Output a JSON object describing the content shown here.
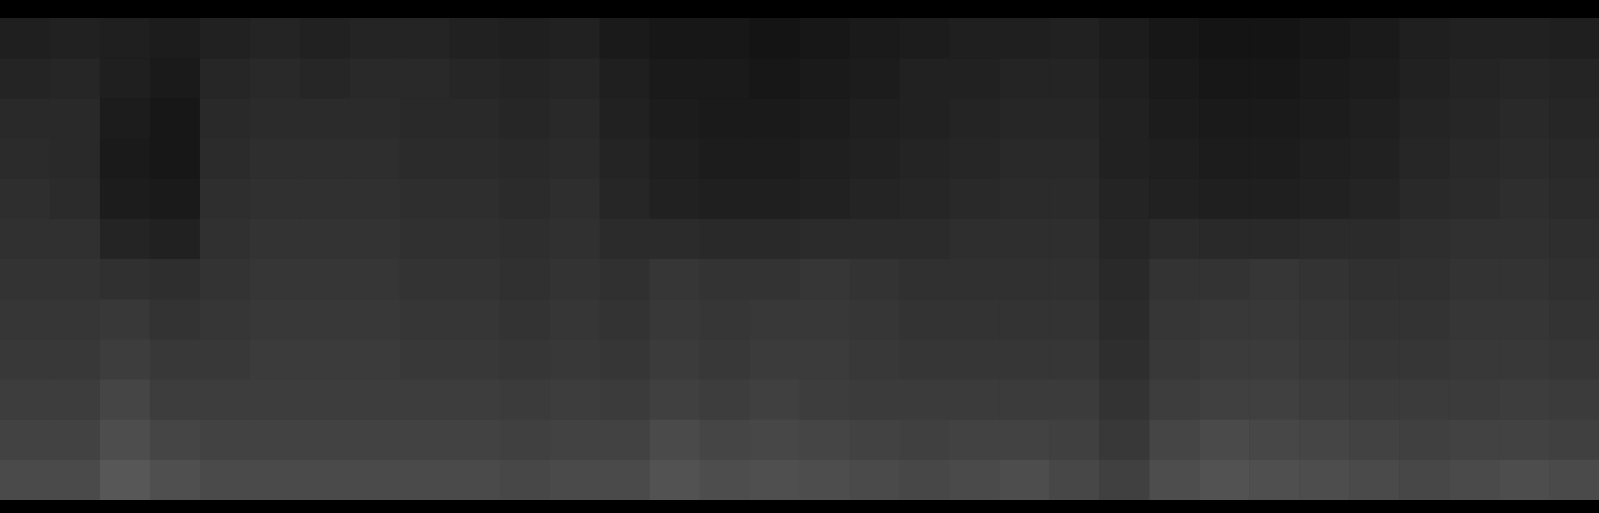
{
  "chart_data": {
    "type": "heatmap",
    "tick_labels": false,
    "color": "#ffffff",
    "zlim": [
      0,
      100
    ],
    "cells": [
      [
        12,
        13,
        12,
        11,
        13,
        14,
        13,
        14,
        14,
        13,
        12,
        13,
        10,
        9,
        9,
        8,
        9,
        10,
        11,
        12,
        12,
        13,
        11,
        9,
        8,
        8,
        9,
        10,
        12,
        13,
        13,
        12
      ],
      [
        14,
        15,
        12,
        10,
        15,
        16,
        15,
        16,
        16,
        15,
        14,
        15,
        12,
        10,
        10,
        9,
        10,
        11,
        13,
        13,
        14,
        14,
        12,
        10,
        9,
        9,
        10,
        11,
        13,
        14,
        15,
        14
      ],
      [
        16,
        16,
        11,
        9,
        16,
        17,
        17,
        17,
        16,
        16,
        15,
        16,
        13,
        11,
        10,
        10,
        11,
        12,
        13,
        14,
        15,
        15,
        13,
        11,
        10,
        10,
        11,
        12,
        14,
        15,
        16,
        15
      ],
      [
        17,
        16,
        10,
        9,
        17,
        18,
        18,
        18,
        17,
        17,
        16,
        17,
        14,
        12,
        11,
        11,
        12,
        13,
        14,
        15,
        16,
        16,
        13,
        12,
        11,
        11,
        12,
        13,
        15,
        16,
        17,
        16
      ],
      [
        18,
        17,
        11,
        10,
        18,
        19,
        19,
        19,
        18,
        18,
        17,
        18,
        15,
        13,
        12,
        12,
        13,
        14,
        15,
        16,
        17,
        17,
        14,
        13,
        12,
        12,
        13,
        14,
        16,
        17,
        18,
        17
      ],
      [
        19,
        19,
        14,
        13,
        19,
        20,
        20,
        20,
        19,
        19,
        18,
        19,
        17,
        17,
        16,
        16,
        17,
        17,
        17,
        18,
        18,
        18,
        15,
        17,
        16,
        16,
        17,
        17,
        18,
        19,
        19,
        18
      ],
      [
        20,
        20,
        19,
        18,
        20,
        21,
        21,
        21,
        20,
        20,
        19,
        20,
        19,
        21,
        20,
        20,
        21,
        20,
        19,
        19,
        19,
        19,
        16,
        20,
        20,
        21,
        20,
        19,
        19,
        20,
        20,
        19
      ],
      [
        21,
        21,
        22,
        20,
        21,
        22,
        22,
        22,
        21,
        21,
        20,
        21,
        20,
        22,
        21,
        22,
        22,
        21,
        20,
        20,
        20,
        20,
        17,
        21,
        22,
        22,
        21,
        20,
        20,
        21,
        21,
        20
      ],
      [
        22,
        22,
        24,
        22,
        22,
        23,
        23,
        23,
        22,
        22,
        21,
        22,
        21,
        23,
        22,
        23,
        23,
        22,
        21,
        21,
        21,
        21,
        18,
        22,
        23,
        23,
        22,
        21,
        21,
        22,
        22,
        21
      ],
      [
        24,
        24,
        27,
        24,
        24,
        24,
        24,
        24,
        24,
        24,
        23,
        24,
        23,
        25,
        24,
        25,
        24,
        23,
        23,
        23,
        23,
        23,
        20,
        24,
        25,
        25,
        24,
        23,
        23,
        23,
        24,
        23
      ],
      [
        26,
        26,
        30,
        27,
        26,
        26,
        26,
        26,
        26,
        26,
        25,
        26,
        26,
        29,
        27,
        28,
        27,
        26,
        25,
        26,
        26,
        25,
        22,
        27,
        29,
        28,
        27,
        26,
        25,
        26,
        26,
        25
      ],
      [
        29,
        29,
        34,
        31,
        29,
        29,
        29,
        29,
        29,
        29,
        28,
        29,
        29,
        32,
        30,
        31,
        30,
        29,
        28,
        29,
        30,
        28,
        25,
        30,
        32,
        31,
        30,
        29,
        28,
        29,
        30,
        29
      ]
    ]
  }
}
